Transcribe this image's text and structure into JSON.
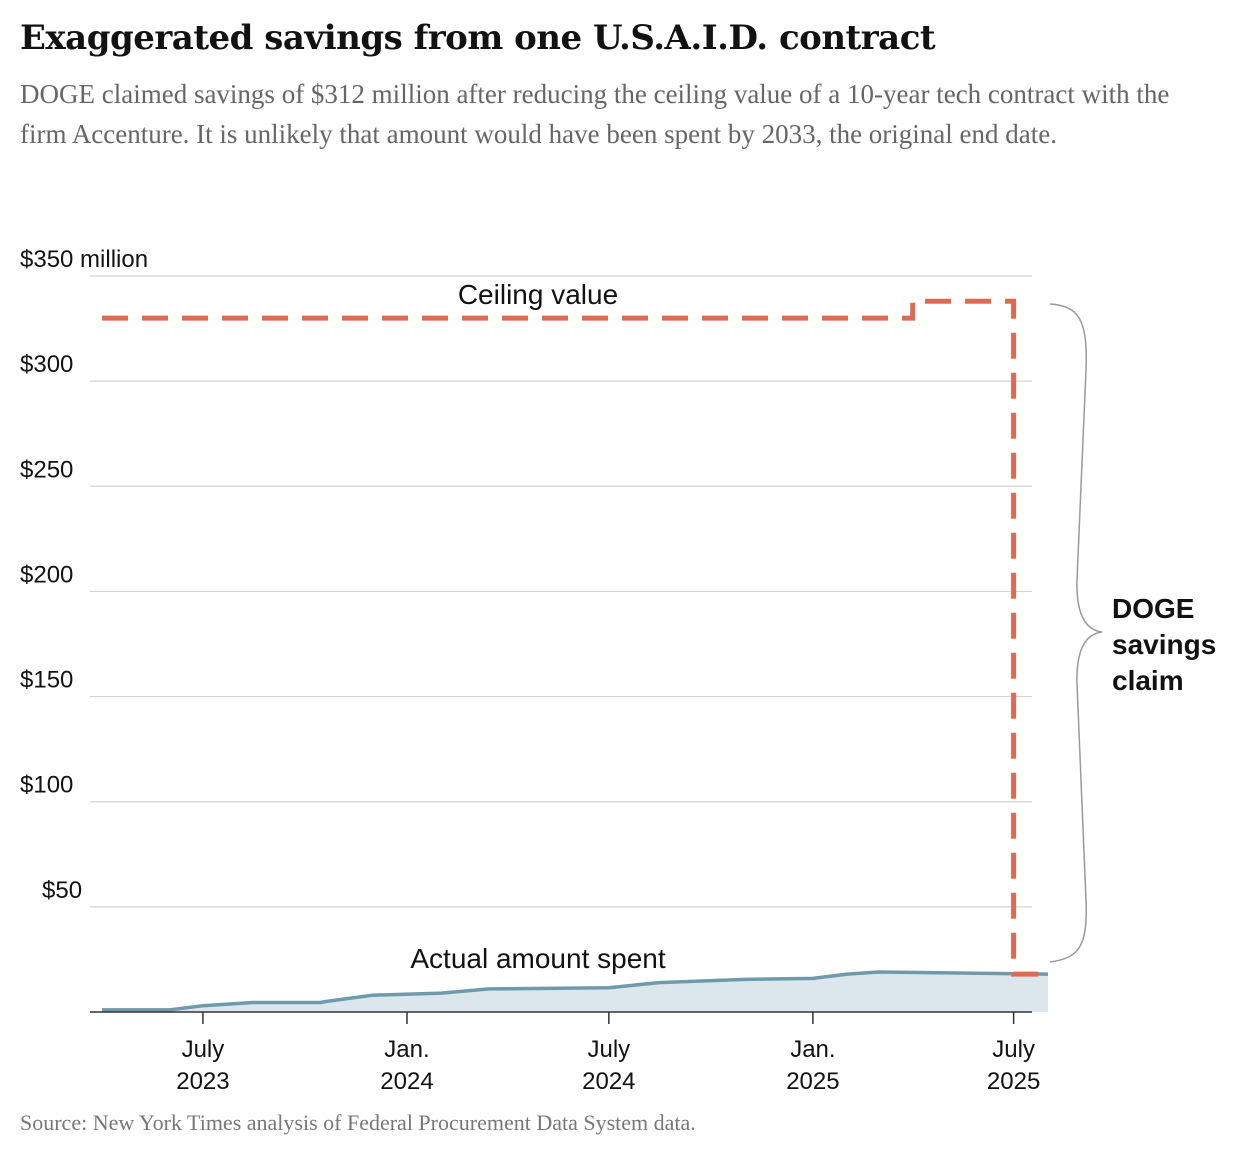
{
  "title": "Exaggerated savings from one U.S.A.I.D. contract",
  "subtitle": "DOGE claimed savings of $312 million after reducing the ceiling value of a 10-year tech contract with the firm Accenture. It is unlikely that amount would have been spent by 2033, the original end date.",
  "source": "Source: New York Times analysis of Federal Procurement Data System data.",
  "colors": {
    "ceiling": "#dd6b54",
    "spent_line": "#6f9aaa",
    "spent_fill": "#dce6ed",
    "grid": "#d3d3d3",
    "bracket": "#9a9a9a"
  },
  "chart_data": {
    "type": "line",
    "title": "Exaggerated savings from one U.S.A.I.D. contract",
    "ylabel": "$ million",
    "ylim": [
      0,
      350
    ],
    "xlim": [
      "2023-04-01",
      "2025-08-01"
    ],
    "y_ticks": [
      {
        "value": 350,
        "label": "$350 million"
      },
      {
        "value": 300,
        "label": "$300"
      },
      {
        "value": 250,
        "label": "$250"
      },
      {
        "value": 200,
        "label": "$200"
      },
      {
        "value": 150,
        "label": "$150"
      },
      {
        "value": 100,
        "label": "$100"
      },
      {
        "value": 50,
        "label": "$50"
      }
    ],
    "x_ticks": [
      {
        "date": "2023-07-01",
        "line1": "July",
        "line2": "2023"
      },
      {
        "date": "2024-01-01",
        "line1": "Jan.",
        "line2": "2024"
      },
      {
        "date": "2024-07-01",
        "line1": "July",
        "line2": "2024"
      },
      {
        "date": "2025-01-01",
        "line1": "Jan.",
        "line2": "2025"
      },
      {
        "date": "2025-07-01",
        "line1": "July",
        "line2": "2025"
      }
    ],
    "series": [
      {
        "name": "Ceiling value",
        "style": "dashed-step",
        "points": [
          [
            "2023-04-01",
            330
          ],
          [
            "2025-04-01",
            330
          ],
          [
            "2025-04-01",
            338
          ],
          [
            "2025-07-01",
            338
          ],
          [
            "2025-07-01",
            18
          ],
          [
            "2025-08-01",
            18
          ]
        ]
      },
      {
        "name": "Actual amount spent",
        "style": "area",
        "points": [
          [
            "2023-04-01",
            1
          ],
          [
            "2023-06-01",
            1
          ],
          [
            "2023-07-01",
            3
          ],
          [
            "2023-08-15",
            4.5
          ],
          [
            "2023-10-15",
            4.5
          ],
          [
            "2023-10-20",
            5
          ],
          [
            "2023-12-01",
            8
          ],
          [
            "2024-02-01",
            9
          ],
          [
            "2024-03-15",
            11
          ],
          [
            "2024-07-01",
            11.5
          ],
          [
            "2024-08-15",
            14
          ],
          [
            "2024-11-01",
            15.5
          ],
          [
            "2025-01-01",
            16
          ],
          [
            "2025-02-01",
            18
          ],
          [
            "2025-03-01",
            19
          ],
          [
            "2025-08-01",
            18
          ]
        ]
      }
    ],
    "annotations": {
      "ceiling_label": "Ceiling value",
      "spent_label": "Actual amount spent",
      "savings_line1": "DOGE",
      "savings_line2": "savings",
      "savings_line3": "claim"
    }
  }
}
